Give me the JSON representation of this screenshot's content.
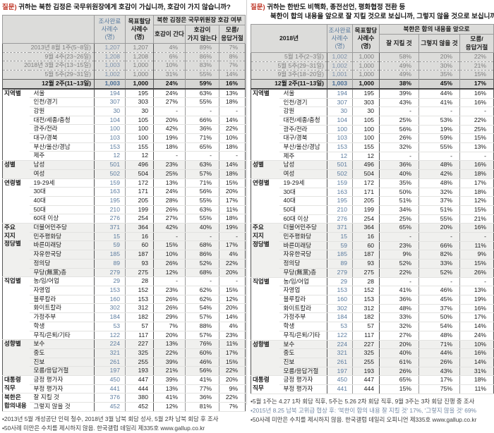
{
  "colors": {
    "question_label_red": "#c03a2b",
    "sample_count_blue": "#5b7b9e",
    "header_bg": "#dcdcda",
    "highlight_row_bg": "#d6d6d4",
    "section_shade_bg": "#f0f0ee",
    "footnote_blue": "#7388a3"
  },
  "panels": {
    "left": {
      "question": {
        "prefix": "질문)",
        "lines": [
          "귀하는 북한 김정은 국무위원장에게 호감이 가십니까, 호감이 가지 않습니까?"
        ]
      },
      "header": {
        "corner": "",
        "completed": [
          "조사완료",
          "사례수",
          "(명)"
        ],
        "target": [
          "목표할당",
          "사례수",
          "(명)"
        ],
        "span": "북한 김정은 국무위원장 호감 여부",
        "answers": [
          [
            "호감이 간다"
          ],
          [
            "호감이",
            "가지 않는다"
          ],
          [
            "모름/",
            "응답거절"
          ]
        ]
      },
      "date_rows": [
        {
          "label": "2013년 8월 1주(5~8일)",
          "current": false,
          "values": [
            "1,207",
            "1,207",
            "4%",
            "89%",
            "7%"
          ]
        },
        {
          "label": "9월 4주(23~26일)",
          "current": false,
          "values": [
            "1,208",
            "1,208",
            "6%",
            "86%",
            "8%"
          ]
        },
        {
          "label": "2018년 3월 2주(13~15일)",
          "current": false,
          "values": [
            "1,003",
            "1,000",
            "10%",
            "83%",
            "7%"
          ]
        },
        {
          "label": "5월 5주(29~31일)",
          "current": false,
          "values": [
            "1,002",
            "1,000",
            "31%",
            "55%",
            "14%"
          ]
        },
        {
          "label": "12월 2주(11~13일)",
          "current": true,
          "values": [
            "1,003",
            "1,000",
            "24%",
            "59%",
            "16%"
          ]
        }
      ],
      "sections": [
        {
          "name": [
            "지역별"
          ],
          "shaded": false,
          "dark": false,
          "rows": [
            [
              "서울",
              "194",
              "195",
              "24%",
              "63%",
              "13%"
            ],
            [
              "인천/경기",
              "307",
              "303",
              "27%",
              "55%",
              "18%"
            ],
            [
              "강원",
              "30",
              "30",
              "-",
              "-",
              "-"
            ],
            [
              "대전/세종/충청",
              "104",
              "105",
              "20%",
              "66%",
              "14%"
            ],
            [
              "광주/전라",
              "100",
              "100",
              "42%",
              "36%",
              "22%"
            ],
            [
              "대구/경북",
              "103",
              "100",
              "19%",
              "71%",
              "10%"
            ],
            [
              "부산/울산/경남",
              "153",
              "155",
              "18%",
              "65%",
              "18%"
            ],
            [
              "제주",
              "12",
              "12",
              "-",
              "-",
              "-"
            ]
          ]
        },
        {
          "name": [
            "성별"
          ],
          "shaded": true,
          "dark": false,
          "rows": [
            [
              "남성",
              "501",
              "496",
              "23%",
              "63%",
              "14%"
            ],
            [
              "여성",
              "502",
              "504",
              "25%",
              "57%",
              "18%"
            ]
          ]
        },
        {
          "name": [
            "연령별"
          ],
          "shaded": false,
          "dark": false,
          "rows": [
            [
              "19-29세",
              "159",
              "172",
              "13%",
              "71%",
              "15%"
            ],
            [
              "30대",
              "163",
              "171",
              "24%",
              "56%",
              "20%"
            ],
            [
              "40대",
              "195",
              "205",
              "28%",
              "55%",
              "17%"
            ],
            [
              "50대",
              "210",
              "199",
              "26%",
              "63%",
              "11%"
            ],
            [
              "60대 이상",
              "276",
              "254",
              "27%",
              "55%",
              "18%"
            ]
          ]
        },
        {
          "name": [
            "주요",
            "지지",
            "정당별"
          ],
          "shaded": true,
          "dark": false,
          "rows": [
            [
              "더불어민주당",
              "371",
              "364",
              "42%",
              "40%",
              "19%"
            ],
            [
              "민주평화당",
              "15",
              "16",
              "-",
              "-",
              "-"
            ],
            [
              "바른미래당",
              "59",
              "60",
              "15%",
              "68%",
              "17%"
            ],
            [
              "자유한국당",
              "185",
              "187",
              "10%",
              "86%",
              "4%"
            ],
            [
              "정의당",
              "89",
              "93",
              "26%",
              "52%",
              "22%"
            ],
            [
              "무당(無黨)층",
              "279",
              "275",
              "12%",
              "68%",
              "20%"
            ]
          ]
        },
        {
          "name": [
            "직업별"
          ],
          "shaded": false,
          "dark": false,
          "rows": [
            [
              "농/임/어업",
              "29",
              "28",
              "-",
              "-",
              "-"
            ],
            [
              "자영업",
              "153",
              "152",
              "23%",
              "62%",
              "15%"
            ],
            [
              "블루칼라",
              "160",
              "153",
              "26%",
              "62%",
              "12%"
            ],
            [
              "화이트칼라",
              "302",
              "312",
              "26%",
              "54%",
              "20%"
            ],
            [
              "가정주부",
              "184",
              "182",
              "29%",
              "57%",
              "14%"
            ],
            [
              "학생",
              "53",
              "57",
              "7%",
              "88%",
              "4%"
            ],
            [
              "무직/은퇴/기타",
              "122",
              "117",
              "20%",
              "57%",
              "23%"
            ]
          ]
        },
        {
          "name": [
            "성향별"
          ],
          "shaded": true,
          "dark": false,
          "rows": [
            [
              "보수",
              "224",
              "227",
              "13%",
              "76%",
              "11%"
            ],
            [
              "중도",
              "321",
              "325",
              "22%",
              "60%",
              "17%"
            ],
            [
              "진보",
              "261",
              "255",
              "39%",
              "46%",
              "15%"
            ],
            [
              "모름/응답거절",
              "197",
              "193",
              "21%",
              "56%",
              "22%"
            ]
          ]
        },
        {
          "name": [
            "대통령",
            "직무"
          ],
          "shaded": false,
          "dark": true,
          "rows": [
            [
              "긍정 평가자",
              "450",
              "447",
              "39%",
              "41%",
              "20%"
            ],
            [
              "부정 평가자",
              "441",
              "444",
              "13%",
              "77%",
              "9%"
            ]
          ]
        },
        {
          "name": [
            "북한은",
            "합의내용"
          ],
          "shaded": false,
          "dark": true,
          "rows": [
            [
              "잘 지킬 것",
              "376",
              "380",
              "41%",
              "36%",
              "22%"
            ],
            [
              "그렇지 않을 것",
              "452",
              "452",
              "12%",
              "81%",
              "7%"
            ]
          ]
        }
      ],
      "footnotes": [
        {
          "text": "•2013년 5월 개성공단 인력 철수, 2018년 3월 남북 회담 성사, 5월 2차 남북 회담 후 조사",
          "blue": false
        },
        {
          "text": "•50사례 미만은 수치를 제시하지 않음. 한국갤럽 데일리 제335호 www.gallup.co.kr",
          "blue": false
        }
      ]
    },
    "right": {
      "question": {
        "prefix": "질문)",
        "lines": [
          "귀하는 한반도 비핵화, 종전선언, 평화협정 전환 등",
          "북한이 합의 내용을 앞으로 잘 지킬 것으로 보십니까, 그렇지 않을 것으로 보십니까?"
        ]
      },
      "header": {
        "corner": "2018년",
        "completed": [
          "조사완료",
          "사례수",
          "(명)"
        ],
        "target": [
          "목표할당",
          "사례수",
          "(명)"
        ],
        "span": "북한은 합의 내용을 앞으로",
        "answers": [
          [
            "잘 지킬 것"
          ],
          [
            "그렇지 않을 것"
          ],
          [
            "모름/",
            "응답거절"
          ]
        ]
      },
      "date_rows": [
        {
          "label": "5월 1주(2~3일)",
          "current": false,
          "values": [
            "1,002",
            "1,000",
            "58%",
            "20%",
            "22%"
          ]
        },
        {
          "label": "5월 5주(29~31일)",
          "current": false,
          "values": [
            "1,002",
            "1,000",
            "49%",
            "30%",
            "21%"
          ]
        },
        {
          "label": "9월 3주(18~20일)",
          "current": false,
          "values": [
            "1,001",
            "1,000",
            "49%",
            "35%",
            "15%"
          ]
        },
        {
          "label": "12월 2주(11~13일)",
          "current": true,
          "values": [
            "1,003",
            "1,000",
            "38%",
            "45%",
            "17%"
          ]
        }
      ],
      "sections": [
        {
          "name": [
            "지역별"
          ],
          "shaded": false,
          "dark": false,
          "rows": [
            [
              "서울",
              "194",
              "195",
              "39%",
              "44%",
              "16%"
            ],
            [
              "인천/경기",
              "307",
              "303",
              "43%",
              "41%",
              "16%"
            ],
            [
              "강원",
              "30",
              "30",
              "-",
              "-",
              "-"
            ],
            [
              "대전/세종/충청",
              "104",
              "105",
              "25%",
              "53%",
              "22%"
            ],
            [
              "광주/전라",
              "100",
              "100",
              "56%",
              "19%",
              "25%"
            ],
            [
              "대구/경북",
              "103",
              "100",
              "26%",
              "59%",
              "15%"
            ],
            [
              "부산/울산/경남",
              "153",
              "155",
              "32%",
              "55%",
              "13%"
            ],
            [
              "제주",
              "12",
              "12",
              "-",
              "-",
              "-"
            ]
          ]
        },
        {
          "name": [
            "성별"
          ],
          "shaded": true,
          "dark": false,
          "rows": [
            [
              "남성",
              "501",
              "496",
              "36%",
              "48%",
              "16%"
            ],
            [
              "여성",
              "502",
              "504",
              "40%",
              "42%",
              "18%"
            ]
          ]
        },
        {
          "name": [
            "연령별"
          ],
          "shaded": false,
          "dark": false,
          "rows": [
            [
              "19-29세",
              "159",
              "172",
              "35%",
              "48%",
              "17%"
            ],
            [
              "30대",
              "163",
              "171",
              "50%",
              "32%",
              "18%"
            ],
            [
              "40대",
              "195",
              "205",
              "51%",
              "37%",
              "12%"
            ],
            [
              "50대",
              "210",
              "199",
              "34%",
              "51%",
              "15%"
            ],
            [
              "60대 이상",
              "276",
              "254",
              "25%",
              "55%",
              "21%"
            ]
          ]
        },
        {
          "name": [
            "주요",
            "지지",
            "정당별"
          ],
          "shaded": true,
          "dark": false,
          "rows": [
            [
              "더불어민주당",
              "371",
              "364",
              "65%",
              "20%",
              "16%"
            ],
            [
              "민주평화당",
              "15",
              "16",
              "-",
              "-",
              "-"
            ],
            [
              "바른미래당",
              "59",
              "60",
              "23%",
              "66%",
              "11%"
            ],
            [
              "자유한국당",
              "185",
              "187",
              "9%",
              "82%",
              "9%"
            ],
            [
              "정의당",
              "89",
              "93",
              "52%",
              "33%",
              "15%"
            ],
            [
              "무당(無黨)층",
              "279",
              "275",
              "22%",
              "52%",
              "26%"
            ]
          ]
        },
        {
          "name": [
            "직업별"
          ],
          "shaded": false,
          "dark": false,
          "rows": [
            [
              "농/임/어업",
              "29",
              "28",
              "-",
              "-",
              "-"
            ],
            [
              "자영업",
              "153",
              "152",
              "41%",
              "46%",
              "13%"
            ],
            [
              "블루칼라",
              "160",
              "153",
              "36%",
              "45%",
              "19%"
            ],
            [
              "화이트칼라",
              "302",
              "312",
              "48%",
              "37%",
              "16%"
            ],
            [
              "가정주부",
              "184",
              "182",
              "33%",
              "50%",
              "17%"
            ],
            [
              "학생",
              "53",
              "57",
              "32%",
              "54%",
              "14%"
            ],
            [
              "무직/은퇴/기타",
              "122",
              "117",
              "27%",
              "48%",
              "24%"
            ]
          ]
        },
        {
          "name": [
            "성향별"
          ],
          "shaded": true,
          "dark": false,
          "rows": [
            [
              "보수",
              "224",
              "227",
              "20%",
              "71%",
              "10%"
            ],
            [
              "중도",
              "321",
              "325",
              "40%",
              "44%",
              "16%"
            ],
            [
              "진보",
              "261",
              "255",
              "61%",
              "26%",
              "14%"
            ],
            [
              "모름/응답거절",
              "197",
              "193",
              "26%",
              "43%",
              "31%"
            ]
          ]
        },
        {
          "name": [
            "대통령",
            "직무"
          ],
          "shaded": false,
          "dark": true,
          "rows": [
            [
              "긍정 평가자",
              "450",
              "447",
              "65%",
              "17%",
              "18%"
            ],
            [
              "부정 평가자",
              "441",
              "444",
              "15%",
              "75%",
              "11%"
            ]
          ]
        }
      ],
      "footnotes": [
        {
          "text": "•5월 1주는 4.27 1차 회담 직후, 5주는 5.26 2차 회담 직후, 9월 3주는 3차 회담 진행 중 조사",
          "blue": false
        },
        {
          "text": "•2015년 8.25 남북 고위급 협상 후: '북한이 합의 내용 잘 지킬 것' 17%, '그렇지 않을 것' 69%",
          "blue": true
        },
        {
          "text": "•50사례 미만은 수치를 제시하지 않음. 한국갤럽 데일리 오피니언 제335호 www.gallup.co.kr",
          "blue": false
        }
      ]
    }
  }
}
